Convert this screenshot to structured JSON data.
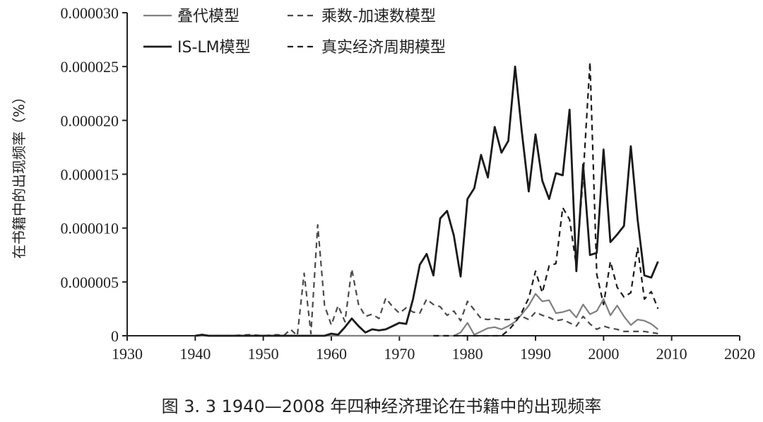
{
  "caption": "图 3. 3   1940—2008 年四种经济理论在书籍中的出现频率",
  "chart_data": {
    "type": "line",
    "title": "",
    "ylabel": "在书籍中的出现频率（%）",
    "xlabel": "",
    "xlim": [
      1930,
      2020
    ],
    "ylim": [
      0,
      3e-05
    ],
    "x_ticks": [
      1930,
      1940,
      1950,
      1960,
      1970,
      1980,
      1990,
      2000,
      2010,
      2020
    ],
    "x_tick_labels": [
      "1930",
      "1940",
      "1950",
      "1960",
      "1970",
      "1980",
      "1990",
      "2000",
      "2010",
      "2020"
    ],
    "y_ticks": [
      0,
      5e-06,
      1e-05,
      1.5e-05,
      2e-05,
      2.5e-05,
      3e-05
    ],
    "y_tick_labels": [
      "0",
      "0.000005",
      "0.000010",
      "0.000015",
      "0.000020",
      "0.000025",
      "0.000030"
    ],
    "legend": [
      {
        "label": "叠代模型",
        "series": 0
      },
      {
        "label": "乘数-加速数模型",
        "series": 2
      },
      {
        "label": "IS-LM模型",
        "series": 1
      },
      {
        "label": "真实经济周期模型",
        "series": 3
      }
    ],
    "legend_position": "top",
    "grid": false,
    "series": [
      {
        "name": "叠代模型",
        "style": "solid",
        "color": "#7f7f7f",
        "x": [
          1940,
          1950,
          1960,
          1970,
          1978,
          1979,
          1980,
          1981,
          1982,
          1983,
          1984,
          1985,
          1986,
          1987,
          1988,
          1989,
          1990,
          1991,
          1992,
          1993,
          1994,
          1995,
          1996,
          1997,
          1998,
          1999,
          2000,
          2001,
          2002,
          2003,
          2004,
          2005,
          2006,
          2007,
          2008
        ],
        "y": [
          0,
          0,
          0,
          0,
          0,
          3e-07,
          1.2e-06,
          1e-07,
          4e-07,
          7e-07,
          8e-07,
          6e-07,
          9e-07,
          1.3e-06,
          2e-06,
          2.8e-06,
          3.9e-06,
          3.2e-06,
          3.3e-06,
          2.1e-06,
          2.2e-06,
          2.4e-06,
          1.7e-06,
          2.9e-06,
          2e-06,
          2.3e-06,
          3.4e-06,
          1.9e-06,
          2.8e-06,
          1.8e-06,
          1e-06,
          1.5e-06,
          1.4e-06,
          1.1e-06,
          6e-07
        ]
      },
      {
        "name": "IS-LM模型",
        "style": "solid",
        "color": "#1a1a1a",
        "x": [
          1940,
          1941,
          1942,
          1945,
          1950,
          1955,
          1958,
          1959,
          1960,
          1961,
          1962,
          1963,
          1964,
          1965,
          1966,
          1967,
          1968,
          1969,
          1970,
          1971,
          1972,
          1973,
          1974,
          1975,
          1976,
          1977,
          1978,
          1979,
          1980,
          1981,
          1982,
          1983,
          1984,
          1985,
          1986,
          1987,
          1988,
          1989,
          1990,
          1991,
          1992,
          1993,
          1994,
          1995,
          1996,
          1997,
          1998,
          1999,
          2000,
          2001,
          2002,
          2003,
          2004,
          2005,
          2006,
          2007,
          2008
        ],
        "y": [
          0,
          1e-07,
          0,
          0,
          0,
          0,
          0,
          0,
          2e-07,
          1e-07,
          8e-07,
          1.6e-06,
          9e-07,
          3e-07,
          6e-07,
          5e-07,
          6e-07,
          9e-07,
          1.2e-06,
          1.1e-06,
          3.4e-06,
          6.6e-06,
          7.6e-06,
          5.6e-06,
          1.09e-05,
          1.16e-05,
          9.3e-06,
          5.5e-06,
          1.27e-05,
          1.37e-05,
          1.68e-05,
          1.47e-05,
          1.94e-05,
          1.7e-05,
          1.81e-05,
          2.5e-05,
          1.89e-05,
          1.34e-05,
          1.87e-05,
          1.44e-05,
          1.27e-05,
          1.51e-05,
          1.49e-05,
          2.1e-05,
          6e-06,
          1.59e-05,
          7.5e-06,
          7.7e-06,
          1.73e-05,
          8.7e-06,
          9.4e-06,
          1.02e-05,
          1.76e-05,
          1.08e-05,
          5.6e-06,
          5.4e-06,
          6.9e-06
        ]
      },
      {
        "name": "乘数-加速数模型",
        "style": "dash",
        "color": "#4a4a4a",
        "x": [
          1940,
          1945,
          1948,
          1950,
          1952,
          1953,
          1954,
          1955,
          1956,
          1957,
          1958,
          1959,
          1960,
          1961,
          1962,
          1963,
          1964,
          1965,
          1966,
          1967,
          1968,
          1969,
          1970,
          1971,
          1972,
          1973,
          1974,
          1975,
          1976,
          1977,
          1978,
          1979,
          1980,
          1981,
          1982,
          1983,
          1984,
          1985,
          1986,
          1987,
          1988,
          1989,
          1990,
          1991,
          1992,
          1993,
          1994,
          1995,
          1996,
          1997,
          1998,
          1999,
          2000,
          2001,
          2002,
          2003,
          2004,
          2005,
          2006,
          2007,
          2008
        ],
        "y": [
          0,
          0,
          1e-07,
          0,
          1e-07,
          0,
          6e-07,
          0,
          5.8e-06,
          2e-07,
          1.03e-05,
          2.8e-06,
          1e-06,
          2.8e-06,
          1.3e-06,
          6.2e-06,
          2.9e-06,
          1.8e-06,
          2e-06,
          1.6e-06,
          3.5e-06,
          2.7e-06,
          2.1e-06,
          2.6e-06,
          2.2e-06,
          2.1e-06,
          3.4e-06,
          2.9e-06,
          2.7e-06,
          1.9e-06,
          2.3e-06,
          1.4e-06,
          3.2e-06,
          2.4e-06,
          1.6e-06,
          1.5e-06,
          1.6e-06,
          1.5e-06,
          1.5e-06,
          1.6e-06,
          1.8e-06,
          1.5e-06,
          2.2e-06,
          1.9e-06,
          1.7e-06,
          1.4e-06,
          1.5e-06,
          1.2e-06,
          9e-07,
          1.8e-06,
          1.1e-06,
          6e-07,
          9e-07,
          7e-07,
          6e-07,
          4e-07,
          4e-07,
          4e-07,
          4e-07,
          3e-07,
          2e-07
        ]
      },
      {
        "name": "真实经济周期模型",
        "style": "dash",
        "color": "#1a1a1a",
        "x": [
          1975,
          1980,
          1985,
          1986,
          1987,
          1988,
          1989,
          1990,
          1991,
          1992,
          1993,
          1994,
          1995,
          1996,
          1997,
          1998,
          1999,
          2000,
          2001,
          2002,
          2003,
          2004,
          2005,
          2006,
          2007,
          2008
        ],
        "y": [
          0,
          0,
          0,
          5e-07,
          1.2e-06,
          2.2e-06,
          3.5e-06,
          6e-06,
          4e-06,
          6.5e-06,
          6.7e-06,
          1.19e-05,
          1.08e-05,
          6.5e-06,
          1.48e-05,
          2.54e-05,
          5.7e-06,
          2.9e-06,
          6.9e-06,
          4.5e-06,
          3.6e-06,
          4e-06,
          8.2e-06,
          3.4e-06,
          4.1e-06,
          2.5e-06
        ]
      }
    ]
  }
}
